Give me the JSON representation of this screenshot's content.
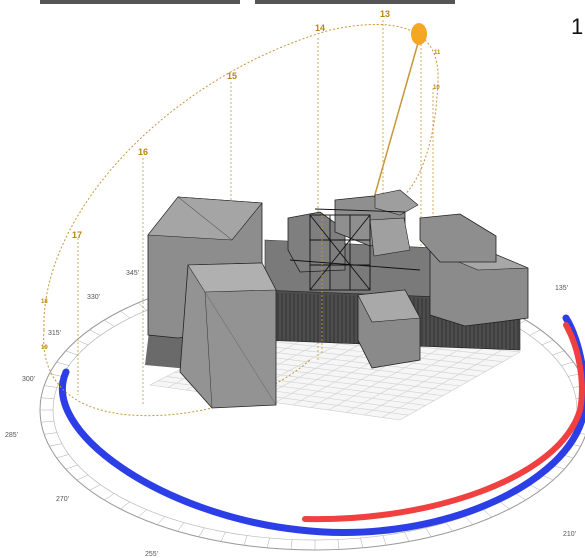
{
  "sun_path": {
    "hour_labels": [
      "13",
      "14",
      "15",
      "16",
      "17",
      "18",
      "19",
      "11",
      "10"
    ]
  },
  "compass": {
    "degree_labels": [
      "135'",
      "210'",
      "255'",
      "270'",
      "285'",
      "300'",
      "315'",
      "330'",
      "345'"
    ]
  },
  "colors": {
    "sun": "#f5a623",
    "sun_path_line": "#c8963c",
    "blue_band": "#2c3ee6",
    "red_band": "#f04040",
    "building_fill": "#8c8c8c",
    "building_shadow": "#5a5a5a"
  },
  "corner_glyph": "1"
}
